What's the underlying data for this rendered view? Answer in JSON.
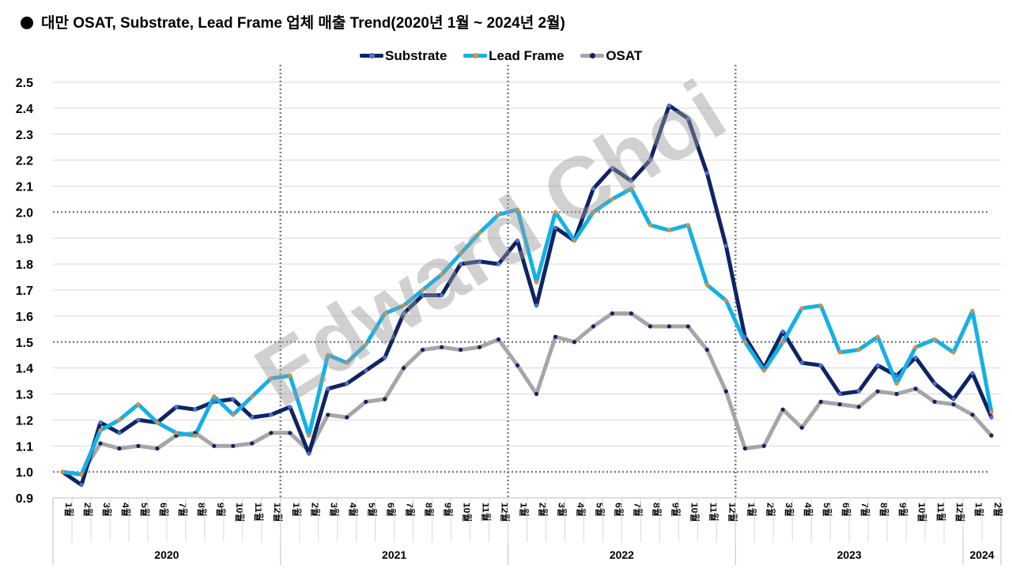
{
  "title": "대만 OSAT, Substrate, Lead Frame 업체 매출 Trend(2020년 1월 ~ 2024년 2월)",
  "watermark": "Edward Choi",
  "legend": [
    {
      "name": "Substrate",
      "color": "#0f2462",
      "marker": "#4a6fd0"
    },
    {
      "name": "Lead Frame",
      "color": "#14b0e6",
      "marker": "#e88a33"
    },
    {
      "name": "OSAT",
      "color": "#a6a6a6",
      "marker": "#0f2462"
    }
  ],
  "chart_data": {
    "type": "line",
    "title": "대만 OSAT, Substrate, Lead Frame 업체 매출 Trend(2020년 1월 ~ 2024년 2월)",
    "xlabel": "",
    "ylabel": "",
    "ylim": [
      0.9,
      2.5
    ],
    "yticks": [
      "0.9",
      "1.0",
      "1.1",
      "1.2",
      "1.3",
      "1.4",
      "1.5",
      "1.6",
      "1.7",
      "1.8",
      "1.9",
      "2.0",
      "2.1",
      "2.2",
      "2.3",
      "2.4",
      "2.5"
    ],
    "reference_lines": [
      1.0,
      1.5,
      2.0
    ],
    "month_labels": [
      "1월",
      "2월",
      "3월",
      "4월",
      "5월",
      "6월",
      "7월",
      "8월",
      "9월",
      "10월",
      "11월",
      "12월",
      "1월",
      "2월",
      "3월",
      "4월",
      "5월",
      "6월",
      "7월",
      "8월",
      "9월",
      "10월",
      "11월",
      "12월",
      "1월",
      "2월",
      "3월",
      "4월",
      "5월",
      "6월",
      "7월",
      "8월",
      "9월",
      "10월",
      "11월",
      "12월",
      "1월",
      "2월",
      "3월",
      "4월",
      "5월",
      "6월",
      "7월",
      "8월",
      "9월",
      "10월",
      "11월",
      "12월",
      "1월",
      "2월"
    ],
    "years": [
      {
        "label": "2020",
        "months": 12
      },
      {
        "label": "2021",
        "months": 12
      },
      {
        "label": "2022",
        "months": 12
      },
      {
        "label": "2023",
        "months": 12
      },
      {
        "label": "2024",
        "months": 2
      }
    ],
    "series": [
      {
        "name": "Substrate",
        "values": [
          1.0,
          0.95,
          1.19,
          1.15,
          1.2,
          1.19,
          1.25,
          1.24,
          1.27,
          1.28,
          1.21,
          1.22,
          1.25,
          1.07,
          1.32,
          1.34,
          1.39,
          1.44,
          1.61,
          1.68,
          1.68,
          1.8,
          1.81,
          1.8,
          1.89,
          1.64,
          1.94,
          1.89,
          2.09,
          2.17,
          2.12,
          2.2,
          2.41,
          2.36,
          2.15,
          1.87,
          1.52,
          1.4,
          1.54,
          1.42,
          1.41,
          1.3,
          1.31,
          1.41,
          1.37,
          1.44,
          1.34,
          1.28,
          1.38,
          1.21
        ]
      },
      {
        "name": "Lead Frame",
        "values": [
          1.0,
          0.99,
          1.16,
          1.2,
          1.26,
          1.19,
          1.15,
          1.14,
          1.29,
          1.22,
          1.29,
          1.36,
          1.37,
          1.14,
          1.45,
          1.42,
          1.49,
          1.61,
          1.64,
          1.7,
          1.76,
          1.84,
          1.92,
          1.99,
          2.01,
          1.73,
          2.0,
          1.89,
          2.0,
          2.05,
          2.09,
          1.95,
          1.93,
          1.95,
          1.72,
          1.66,
          1.5,
          1.39,
          1.5,
          1.63,
          1.64,
          1.46,
          1.47,
          1.52,
          1.34,
          1.48,
          1.51,
          1.46,
          1.62,
          1.23
        ]
      },
      {
        "name": "OSAT",
        "values": [
          1.0,
          0.99,
          1.11,
          1.09,
          1.1,
          1.09,
          1.14,
          1.15,
          1.1,
          1.1,
          1.11,
          1.15,
          1.15,
          1.08,
          1.22,
          1.21,
          1.27,
          1.28,
          1.4,
          1.47,
          1.48,
          1.47,
          1.48,
          1.51,
          1.41,
          1.3,
          1.52,
          1.5,
          1.56,
          1.61,
          1.61,
          1.56,
          1.56,
          1.56,
          1.47,
          1.31,
          1.09,
          1.1,
          1.24,
          1.17,
          1.27,
          1.26,
          1.25,
          1.31,
          1.3,
          1.32,
          1.27,
          1.26,
          1.22,
          1.14
        ]
      }
    ]
  }
}
